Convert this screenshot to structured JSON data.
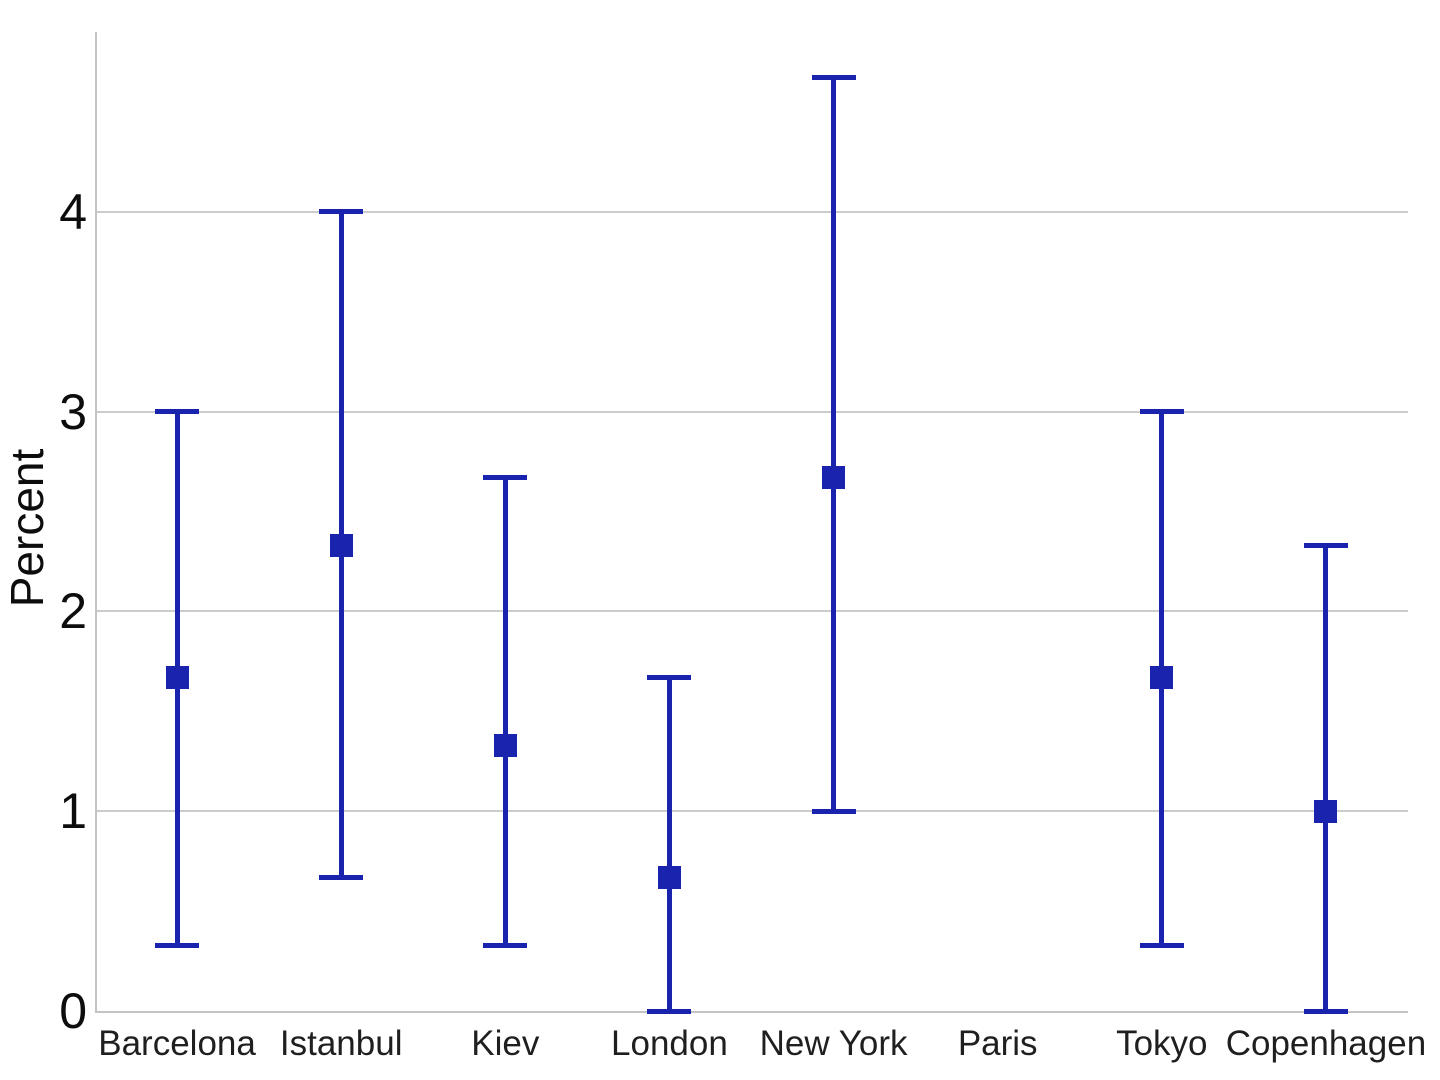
{
  "chart_data": {
    "type": "errorbar",
    "title": "",
    "xlabel": "",
    "ylabel": "Percent",
    "categories": [
      "Barcelona",
      "Istanbul",
      "Kiev",
      "London",
      "New York",
      "Paris",
      "Tokyo",
      "Copenhagen"
    ],
    "series": [
      {
        "name": "estimate",
        "values": [
          1.67,
          2.33,
          1.33,
          0.67,
          2.67,
          null,
          1.67,
          1.0
        ]
      },
      {
        "name": "ci_lower",
        "values": [
          0.33,
          0.67,
          0.33,
          0.0,
          1.0,
          null,
          0.33,
          0.0
        ]
      },
      {
        "name": "ci_upper",
        "values": [
          3.0,
          4.0,
          2.67,
          1.67,
          4.67,
          null,
          3.0,
          2.33
        ]
      }
    ],
    "yticks": [
      "0",
      "1",
      "2",
      "3",
      "4"
    ],
    "ytick_values": [
      0,
      1,
      2,
      3,
      4
    ],
    "ylim": [
      0,
      4.9
    ],
    "grid": "horizontal",
    "legend": "none",
    "marker": "square",
    "colors": {
      "errorbar": "#1a23ae",
      "grid": "#cccccc",
      "axis": "#c4c4c4",
      "text": "#0d0d0d"
    }
  }
}
